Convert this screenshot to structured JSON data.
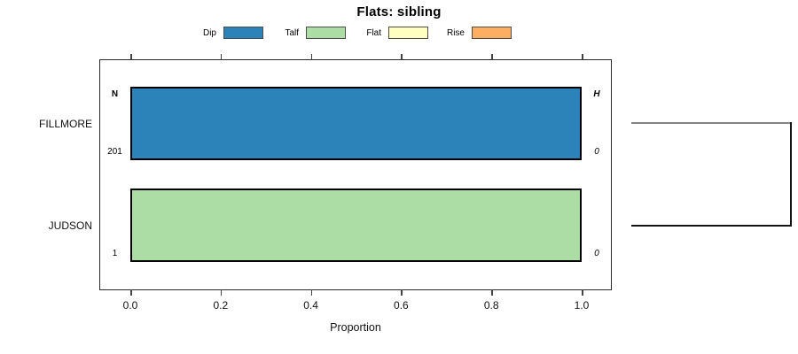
{
  "title": "Flats: sibling",
  "legend": {
    "items": [
      {
        "label": "Dip",
        "color": "#2B83BA"
      },
      {
        "label": "Talf",
        "color": "#ABDDA4"
      },
      {
        "label": "Flat",
        "color": "#FFFFBF"
      },
      {
        "label": "Rise",
        "color": "#FDAE61"
      }
    ]
  },
  "axis": {
    "xlabel": "Proportion",
    "ticks": [
      "0.0",
      "0.2",
      "0.4",
      "0.6",
      "0.8",
      "1.0"
    ],
    "xlim": [
      0.0,
      1.0
    ]
  },
  "chart_data": {
    "type": "bar",
    "orientation": "horizontal",
    "stacked": true,
    "title": "Flats: sibling",
    "xlabel": "Proportion",
    "xlim": [
      0.0,
      1.0
    ],
    "grid": false,
    "legend_position": "top",
    "categories": [
      "FILLMORE",
      "JUDSON"
    ],
    "series": [
      {
        "name": "Dip",
        "color": "#2B83BA",
        "values": [
          1.0,
          0.0
        ]
      },
      {
        "name": "Talf",
        "color": "#ABDDA4",
        "values": [
          0.0,
          1.0
        ]
      },
      {
        "name": "Flat",
        "color": "#FFFFBF",
        "values": [
          0.0,
          0.0
        ]
      },
      {
        "name": "Rise",
        "color": "#FDAE61",
        "values": [
          0.0,
          0.0
        ]
      }
    ],
    "annotations": {
      "left_header": "N",
      "right_header": "H",
      "left_values": [
        "201",
        "1"
      ],
      "right_values": [
        "0",
        "0"
      ]
    },
    "right_panel": "cluster-bracket"
  }
}
